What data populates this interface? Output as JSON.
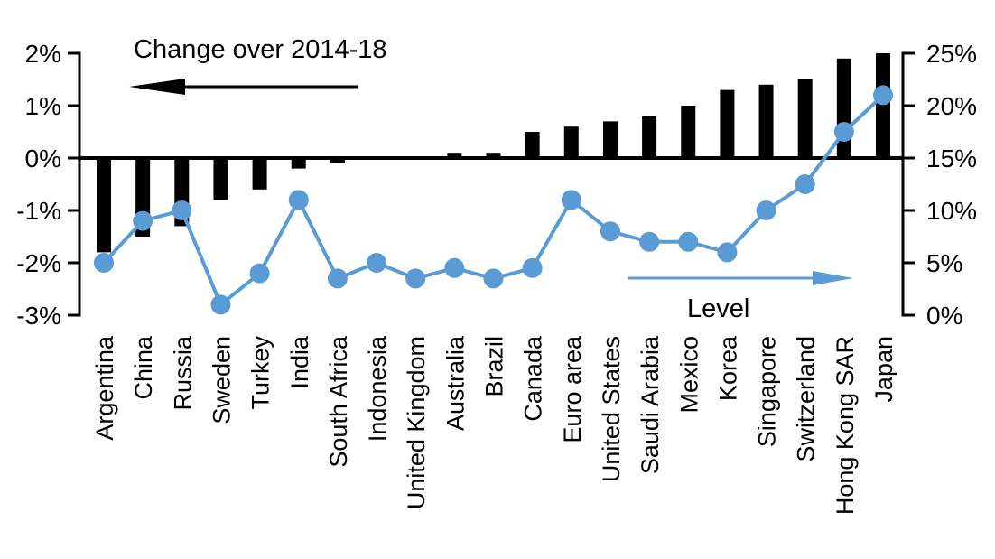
{
  "chart_data": {
    "type": "bar",
    "subtype": "dual-axis bar + line",
    "categories": [
      "Argentina",
      "China",
      "Russia",
      "Sweden",
      "Turkey",
      "India",
      "South Africa",
      "Indonesia",
      "United Kingdom",
      "Australia",
      "Brazil",
      "Canada",
      "Euro area",
      "United States",
      "Saudi Arabia",
      "Mexico",
      "Korea",
      "Singapore",
      "Switzerland",
      "Hong Kong SAR",
      "Japan"
    ],
    "series": [
      {
        "name": "Change over 2014-18",
        "type": "bar",
        "axis": "left",
        "values": [
          -1.8,
          -1.5,
          -1.3,
          -0.8,
          -0.6,
          -0.2,
          -0.1,
          0,
          0,
          0.1,
          0.1,
          0.5,
          0.6,
          0.7,
          0.8,
          1.0,
          1.3,
          1.4,
          1.5,
          1.9,
          2.0
        ]
      },
      {
        "name": "Level",
        "type": "line",
        "axis": "right",
        "values": [
          5,
          9,
          10,
          1,
          4,
          11,
          3.5,
          5,
          3.5,
          4.5,
          3.5,
          4.5,
          11,
          8,
          7,
          7,
          6,
          10,
          12.5,
          17.5,
          21
        ]
      }
    ],
    "left_axis": {
      "ticks": [
        "2%",
        "1%",
        "0%",
        "-1%",
        "-2%",
        "-3%"
      ],
      "min": -3,
      "max": 2,
      "unit": "%"
    },
    "right_axis": {
      "ticks": [
        "25%",
        "20%",
        "15%",
        "10%",
        "5%",
        "0%"
      ],
      "min": 0,
      "max": 25,
      "unit": "%"
    },
    "annotations": {
      "bar_label": "Change over 2014-18",
      "line_label": "Level"
    },
    "icons": {
      "bar_arrow": "left-arrow",
      "line_arrow": "right-arrow"
    },
    "layout_hints": {
      "grid": "off",
      "zero_line": "bold",
      "category_labels": "rotated-90"
    },
    "colors": {
      "bar": "#000000",
      "line": "#5B9BD5",
      "background": "#ffffff",
      "text": "#000000"
    }
  }
}
